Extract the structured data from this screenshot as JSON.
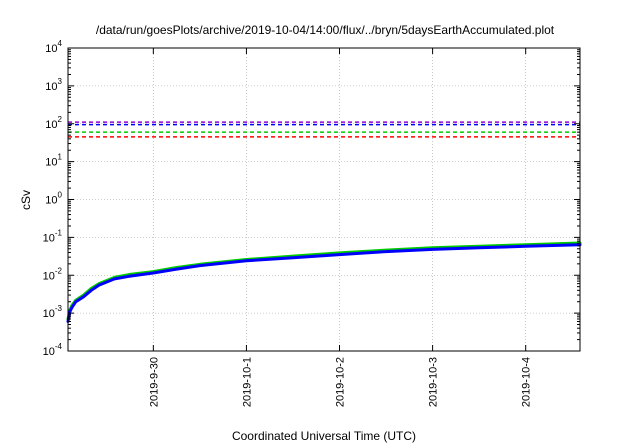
{
  "chart_data": {
    "type": "line",
    "title": "/data/run/goesPlots/archive/2019-10-04/14:00/flux/../bryn/5daysEarthAccumulated.plot",
    "xlabel": "Coordinated Universal Time (UTC)",
    "ylabel": "cSv",
    "yscale": "log",
    "xlim": [
      "2019-09-29T02:00",
      "2019-10-04T14:00"
    ],
    "ylim": [
      0.0001,
      10000
    ],
    "grid": true,
    "x_ticks": [
      "2019-09-30",
      "2019-10-01",
      "2019-10-02",
      "2019-10-03",
      "2019-10-04"
    ],
    "x_tick_labels": [
      "2019-9-30",
      "2019-10-1",
      "2019-10-2",
      "2019-10-3",
      "2019-10-4"
    ],
    "y_ticks": [
      0.0001,
      0.001,
      0.01,
      0.1,
      1,
      10,
      100,
      1000,
      10000
    ],
    "y_tick_labels": [
      {
        "base": "10",
        "exp": "-4"
      },
      {
        "base": "10",
        "exp": "-3"
      },
      {
        "base": "10",
        "exp": "-2"
      },
      {
        "base": "10",
        "exp": "-1"
      },
      {
        "base": "10",
        "exp": "0"
      },
      {
        "base": "10",
        "exp": "1"
      },
      {
        "base": "10",
        "exp": "2"
      },
      {
        "base": "10",
        "exp": "3"
      },
      {
        "base": "10",
        "exp": "4"
      }
    ],
    "thresholds": [
      {
        "value": 110,
        "color": "#9400d3"
      },
      {
        "value": 95,
        "color": "#0000ff"
      },
      {
        "value": 60,
        "color": "#00cc00"
      },
      {
        "value": 45,
        "color": "#ff0000"
      }
    ],
    "series": [
      {
        "color": "#00cc00",
        "x": [
          "2019-09-29T02:00",
          "2019-09-29T02:30",
          "2019-09-29T03:00",
          "2019-09-29T04:00",
          "2019-09-29T06:00",
          "2019-09-29T08:00",
          "2019-09-29T10:00",
          "2019-09-29T14:00",
          "2019-09-29T18:00",
          "2019-09-30T00:00",
          "2019-09-30T06:00",
          "2019-09-30T12:00",
          "2019-10-01T00:00",
          "2019-10-01T12:00",
          "2019-10-02T00:00",
          "2019-10-02T12:00",
          "2019-10-03T00:00",
          "2019-10-03T12:00",
          "2019-10-04T00:00",
          "2019-10-04T14:00"
        ],
        "values": [
          0.0007,
          0.0012,
          0.0016,
          0.0022,
          0.003,
          0.0045,
          0.006,
          0.0088,
          0.0105,
          0.0125,
          0.016,
          0.0195,
          0.026,
          0.032,
          0.039,
          0.046,
          0.053,
          0.058,
          0.064,
          0.071
        ]
      },
      {
        "color": "#0000ff",
        "x": [
          "2019-09-29T02:00",
          "2019-09-29T02:30",
          "2019-09-29T03:00",
          "2019-09-29T04:00",
          "2019-09-29T06:00",
          "2019-09-29T08:00",
          "2019-09-29T10:00",
          "2019-09-29T14:00",
          "2019-09-29T18:00",
          "2019-09-30T00:00",
          "2019-09-30T06:00",
          "2019-09-30T12:00",
          "2019-10-01T00:00",
          "2019-10-01T12:00",
          "2019-10-02T00:00",
          "2019-10-02T12:00",
          "2019-10-03T00:00",
          "2019-10-03T12:00",
          "2019-10-04T00:00",
          "2019-10-04T14:00"
        ],
        "values": [
          0.0006,
          0.0011,
          0.0014,
          0.002,
          0.0027,
          0.004,
          0.0055,
          0.008,
          0.0095,
          0.0115,
          0.0145,
          0.018,
          0.024,
          0.029,
          0.035,
          0.042,
          0.048,
          0.053,
          0.058,
          0.064
        ]
      }
    ]
  }
}
